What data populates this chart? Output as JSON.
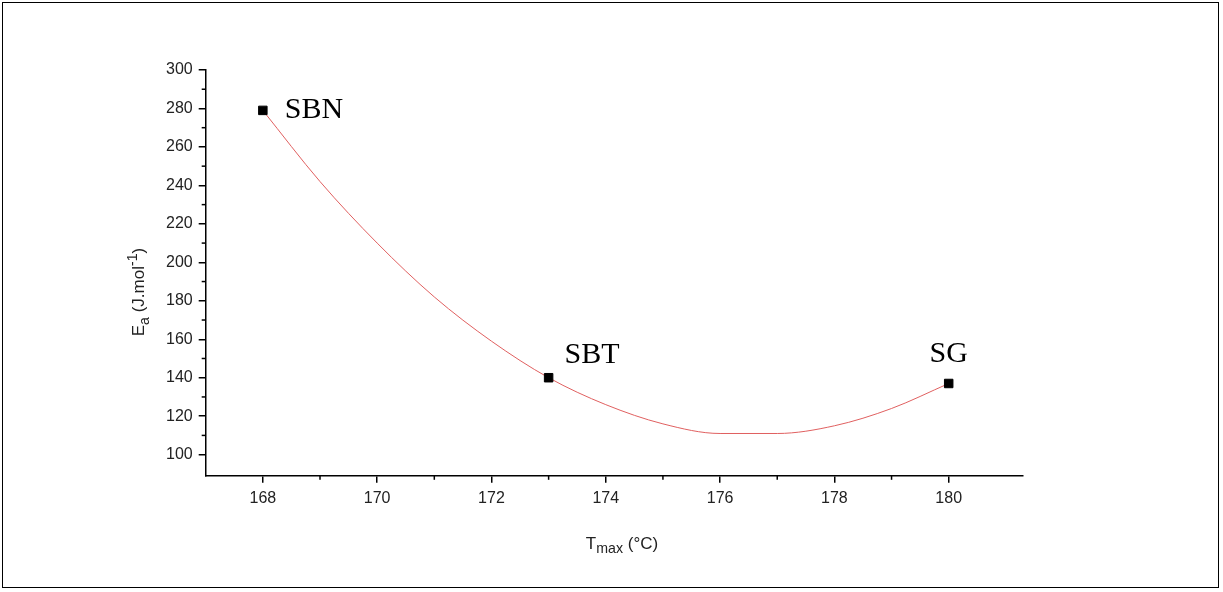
{
  "chart_data": {
    "type": "scatter",
    "xlabel": "T$_{max}$ (°C)",
    "ylabel": "E$_{a}$ (J.mol$^{-1}$)",
    "x": [
      168,
      173,
      180
    ],
    "series": [
      {
        "color": "#000000",
        "marker": "square",
        "values": [
          279,
          140,
          137
        ]
      },
      {
        "type": "line",
        "color": "#e06060",
        "marker": "none",
        "x": [
          168,
          169,
          170,
          171,
          172,
          173,
          174,
          175,
          176,
          177,
          178,
          179,
          180
        ],
        "values": [
          279,
          242,
          210,
          182,
          159,
          140,
          126,
          116,
          111,
          111,
          115,
          124,
          137
        ]
      }
    ],
    "xlim": [
      167,
      181.3
    ],
    "xticks": [
      168,
      170,
      172,
      174,
      176,
      178,
      180
    ],
    "ylim": [
      89,
      300
    ],
    "yticks": [
      100,
      120,
      140,
      160,
      180,
      200,
      220,
      240,
      260,
      280,
      300
    ],
    "annotations": [
      {
        "text": "SBN",
        "x": 168,
        "y": 279
      },
      {
        "text": "SBT",
        "x": 173,
        "y": 140
      },
      {
        "text": "SG",
        "x": 180,
        "y": 137
      }
    ],
    "grid": false,
    "legend": false
  }
}
